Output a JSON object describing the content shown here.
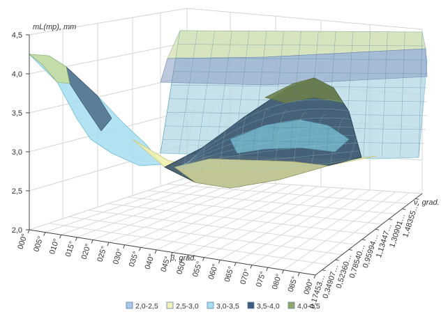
{
  "chart_data": {
    "type": "surface",
    "title": "",
    "zlabel": "mL(mp), mm",
    "xlabel": "β, grad.",
    "ylabel": "ν, grad.",
    "zlim": [
      2.0,
      4.5
    ],
    "z_ticks": [
      "2,0",
      "2,5",
      "3,0",
      "3,5",
      "4,0",
      "4,5"
    ],
    "x_ticks": [
      "000°",
      "005°",
      "010°",
      "015°",
      "020°",
      "025°",
      "030°",
      "035°",
      "040°",
      "045°",
      "050°",
      "055°",
      "060°",
      "065°",
      "070°",
      "075°",
      "080°",
      "085°",
      "090°"
    ],
    "y_ticks": [
      "0,17453…",
      "0,34907…",
      "0,52360…",
      "0,78540…",
      "0,95994…",
      "1,13447…",
      "1,30901…",
      "1,48355…"
    ],
    "legend": [
      {
        "label": "2,0-2,5",
        "color": "#a9c8ea"
      },
      {
        "label": "2,5-3,0",
        "color": "#f4f3b8"
      },
      {
        "label": "3,0-3,5",
        "color": "#a6def0"
      },
      {
        "label": "3,5-4,0",
        "color": "#3e5b7a"
      },
      {
        "label": "4,0-4,5",
        "color": "#8fa864"
      }
    ],
    "legend_position": "bottom",
    "grid": true
  }
}
